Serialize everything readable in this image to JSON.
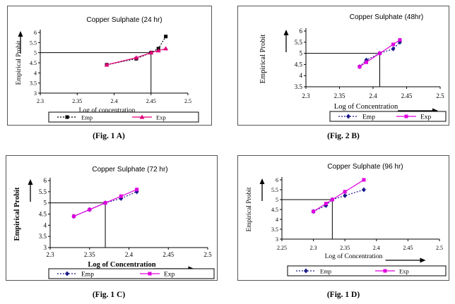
{
  "chart_data": [
    {
      "type": "line",
      "title": "Copper Sulphate (24 hr)",
      "xlabel": "Log of concentration",
      "ylabel": "Empirical Probit",
      "xlim": [
        2.3,
        2.5
      ],
      "ylim": [
        3,
        6
      ],
      "xticks": [
        "2.3",
        "2.35",
        "2.4",
        "2.45",
        "2.5"
      ],
      "yticks": [
        "3",
        "3.5",
        "4",
        "4.5",
        "5",
        "5.5",
        "6"
      ],
      "legend_placement": "bottom",
      "crosshair": {
        "x": 2.45,
        "y": 5
      },
      "series": [
        {
          "name": "Emp",
          "x": [
            2.39,
            2.43,
            2.45,
            2.46,
            2.47
          ],
          "y": [
            4.4,
            4.7,
            5.0,
            5.2,
            5.8
          ],
          "color": "#000000",
          "marker": "square"
        },
        {
          "name": "Exp",
          "x": [
            2.39,
            2.43,
            2.45,
            2.46,
            2.47
          ],
          "y": [
            4.4,
            4.75,
            5.0,
            5.1,
            5.2
          ],
          "color": "#e0007a",
          "marker": "triangle"
        }
      ],
      "caption": "(Fig. 1 A)"
    },
    {
      "type": "line",
      "title": "Copper Sulphate (48hr)",
      "xlabel": "Log of Concentration",
      "ylabel": "Empirical Probit",
      "xlim": [
        2.3,
        2.5
      ],
      "ylim": [
        3.5,
        6
      ],
      "xticks": [
        "2.3",
        "2.35",
        "2.4",
        "2.45",
        "2.5"
      ],
      "yticks": [
        "3.5",
        "4",
        "4.5",
        "5",
        "5.5",
        "6"
      ],
      "legend_placement": "bottom",
      "crosshair": {
        "x": 2.41,
        "y": 5
      },
      "series": [
        {
          "name": "Emp",
          "x": [
            2.38,
            2.39,
            2.41,
            2.43,
            2.44
          ],
          "y": [
            4.4,
            4.7,
            5.0,
            5.2,
            5.5
          ],
          "color": "#1a1a8c",
          "marker": "diamond"
        },
        {
          "name": "Exp",
          "x": [
            2.38,
            2.39,
            2.41,
            2.43,
            2.44
          ],
          "y": [
            4.4,
            4.6,
            5.0,
            5.4,
            5.6
          ],
          "color": "#e000e0",
          "marker": "square"
        }
      ],
      "caption": "(Fig. 2 B)"
    },
    {
      "type": "line",
      "title": "Copper Sulphate (72 hr)",
      "xlabel": "Log of Concentration",
      "ylabel": "Empirical Probit",
      "xlim": [
        2.3,
        2.5
      ],
      "ylim": [
        3,
        6
      ],
      "xticks": [
        "2.3",
        "2.35",
        "2.4",
        "2.45",
        "2.5"
      ],
      "yticks": [
        "3",
        "3.5",
        "4",
        "4.5",
        "5",
        "5.5",
        "6"
      ],
      "legend_placement": "bottom",
      "crosshair": {
        "x": 2.37,
        "y": 5
      },
      "series": [
        {
          "name": "Emp",
          "x": [
            2.33,
            2.35,
            2.37,
            2.39,
            2.41
          ],
          "y": [
            4.4,
            4.7,
            5.0,
            5.2,
            5.5
          ],
          "color": "#1a1a8c",
          "marker": "diamond"
        },
        {
          "name": "Exp",
          "x": [
            2.33,
            2.35,
            2.37,
            2.39,
            2.41
          ],
          "y": [
            4.4,
            4.7,
            5.0,
            5.3,
            5.6
          ],
          "color": "#e000e0",
          "marker": "square"
        }
      ],
      "caption": "(Fig. 1 C)"
    },
    {
      "type": "line",
      "title": "Copper Sulphate (96 hr)",
      "xlabel": "Log of Concentration",
      "ylabel": "Empirical Probit",
      "xlim": [
        2.25,
        2.5
      ],
      "ylim": [
        3,
        6
      ],
      "xticks": [
        "2.25",
        "2.3",
        "2.35",
        "2.4",
        "2.45",
        "2.5"
      ],
      "yticks": [
        "3",
        "3.5",
        "4",
        "4.5",
        "5",
        "5.5",
        "6"
      ],
      "legend_placement": "bottom",
      "crosshair": {
        "x": 2.33,
        "y": 5
      },
      "series": [
        {
          "name": "Emp",
          "x": [
            2.3,
            2.32,
            2.33,
            2.35,
            2.38
          ],
          "y": [
            4.4,
            4.7,
            5.0,
            5.2,
            5.5
          ],
          "color": "#1a1a8c",
          "marker": "diamond"
        },
        {
          "name": "Exp",
          "x": [
            2.3,
            2.32,
            2.33,
            2.35,
            2.38
          ],
          "y": [
            4.4,
            4.8,
            5.0,
            5.4,
            6.0
          ],
          "color": "#e000e0",
          "marker": "square"
        }
      ],
      "caption": "(Fig. 1 D)"
    }
  ]
}
